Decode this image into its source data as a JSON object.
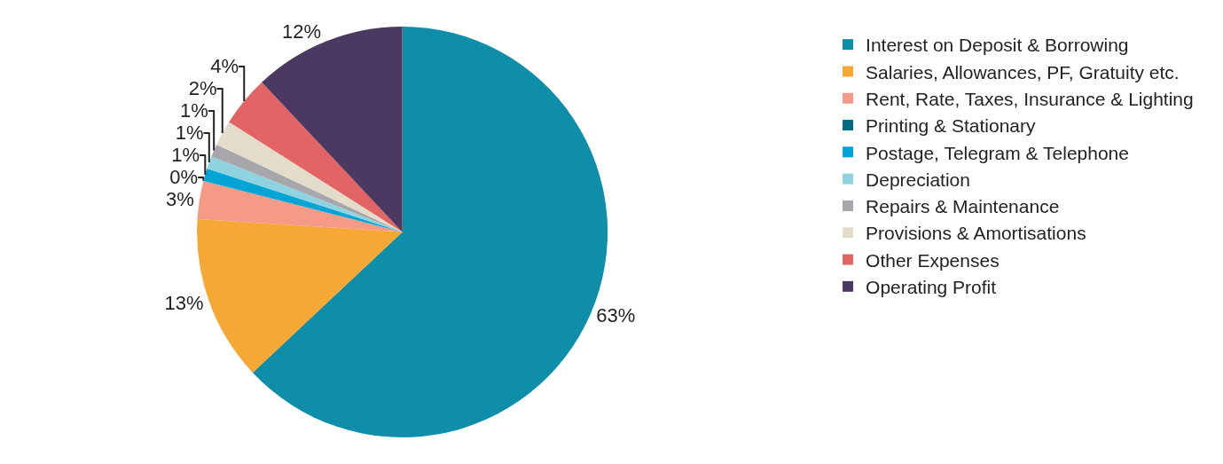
{
  "chart_data": {
    "type": "pie",
    "categories": [
      "Interest on Deposit & Borrowing",
      "Salaries, Allowances, PF, Gratuity etc.",
      "Rent, Rate, Taxes, Insurance & Lighting",
      "Printing & Stationary",
      "Postage, Telegram & Telephone",
      "Depreciation",
      "Repairs & Maintenance",
      "Provisions & Amortisations",
      "Other Expenses",
      "Operating Profit"
    ],
    "values": [
      63,
      13,
      3,
      0,
      1,
      1,
      1,
      2,
      4,
      12
    ],
    "value_labels": [
      "63%",
      "13%",
      "3%",
      "0%",
      "1%",
      "1%",
      "1%",
      "2%",
      "4%",
      "12%"
    ],
    "colors": [
      "#0f8ea9",
      "#f5a833",
      "#f59a86",
      "#006b80",
      "#00a5d6",
      "#8fd3e0",
      "#a6a6ab",
      "#e3dccb",
      "#e36464",
      "#4b3961"
    ],
    "legend": "right"
  }
}
